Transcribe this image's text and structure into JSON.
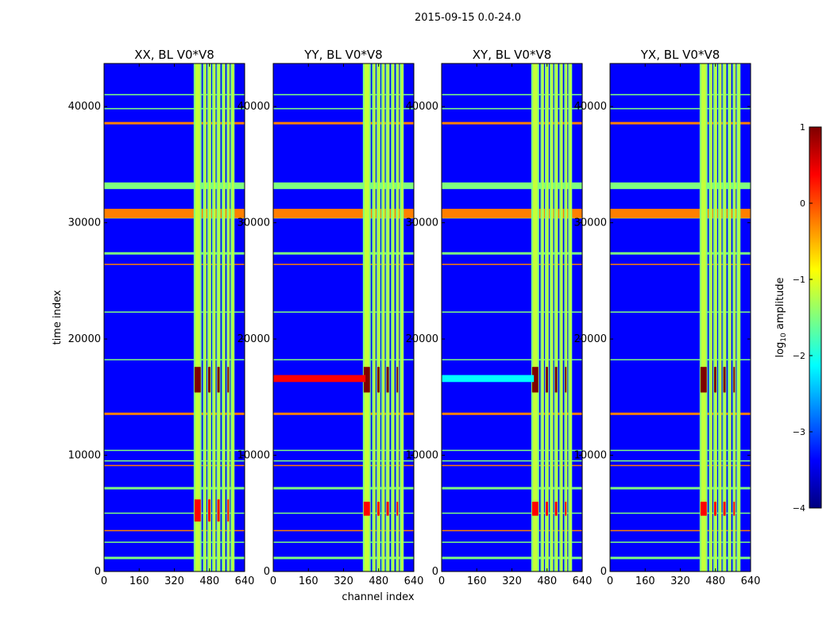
{
  "figure": {
    "suptitle": "2015-09-15 0.0-24.0",
    "colorscale": [
      "#00007f",
      "#0000ff",
      "#007fff",
      "#00ffff",
      "#7fff7f",
      "#ffff00",
      "#ff7f00",
      "#ff0000",
      "#7f0000"
    ]
  },
  "chart_data": [
    {
      "type": "heatmap",
      "title": "XX, BL V0*V8",
      "xlabel": "",
      "ylabel": "time index",
      "xlim": [
        0,
        640
      ],
      "ylim": [
        0,
        43700
      ],
      "xticks": [
        "0",
        "160",
        "320",
        "480",
        "640"
      ],
      "yticks": [
        "0",
        "10000",
        "20000",
        "30000",
        "40000"
      ],
      "band_channels": [
        [
          408,
          444
        ],
        [
          450,
          466
        ],
        [
          470,
          488
        ],
        [
          492,
          508
        ],
        [
          512,
          530
        ],
        [
          536,
          552
        ],
        [
          558,
          572
        ],
        [
          576,
          594
        ]
      ],
      "hot_time_ranges": [
        [
          15400,
          17600
        ],
        [
          4300,
          6200
        ]
      ],
      "broadband_flag": false,
      "bright_time_rows": [
        38600,
        39800,
        41000,
        33000,
        33400,
        31100,
        30800,
        30400,
        27400,
        26400,
        22300,
        18200,
        13600,
        10400,
        9500,
        9100,
        7200,
        5000,
        3500,
        2500,
        1200
      ]
    },
    {
      "type": "heatmap",
      "title": "YY, BL V0*V8",
      "xlabel": "channel index",
      "ylabel": "",
      "xlim": [
        0,
        640
      ],
      "ylim": [
        0,
        43700
      ],
      "xticks": [
        "0",
        "160",
        "320",
        "480",
        "640"
      ],
      "yticks": [
        "0",
        "10000",
        "20000",
        "30000",
        "40000"
      ],
      "band_channels": [
        [
          408,
          444
        ],
        [
          450,
          466
        ],
        [
          470,
          488
        ],
        [
          492,
          508
        ],
        [
          512,
          530
        ],
        [
          536,
          552
        ],
        [
          558,
          572
        ],
        [
          576,
          594
        ]
      ],
      "hot_time_ranges": [
        [
          15400,
          17600
        ],
        [
          4800,
          6000
        ]
      ],
      "broadband_flag": true,
      "bright_time_rows": [
        38600,
        39800,
        41000,
        33000,
        33400,
        31100,
        30800,
        30400,
        27400,
        26400,
        22300,
        18200,
        13600,
        10400,
        9500,
        9100,
        7200,
        5000,
        3500,
        2500,
        1200
      ]
    },
    {
      "type": "heatmap",
      "title": "XY, BL V0*V8",
      "xlabel": "",
      "ylabel": "",
      "xlim": [
        0,
        640
      ],
      "ylim": [
        0,
        43700
      ],
      "xticks": [
        "0",
        "160",
        "320",
        "480",
        "640"
      ],
      "yticks": [
        "0",
        "10000",
        "20000",
        "30000",
        "40000"
      ],
      "band_channels": [
        [
          408,
          444
        ],
        [
          450,
          466
        ],
        [
          470,
          488
        ],
        [
          492,
          508
        ],
        [
          512,
          530
        ],
        [
          536,
          552
        ],
        [
          558,
          572
        ],
        [
          576,
          594
        ]
      ],
      "hot_time_ranges": [
        [
          15400,
          17600
        ],
        [
          4800,
          6000
        ]
      ],
      "broadband_flag": true,
      "bright_time_rows": [
        38600,
        39800,
        41000,
        33000,
        33400,
        31100,
        30800,
        30400,
        27400,
        26400,
        22300,
        18200,
        13600,
        10400,
        9500,
        9100,
        7200,
        5000,
        3500,
        2500,
        1200
      ]
    },
    {
      "type": "heatmap",
      "title": "YX, BL V0*V8",
      "xlabel": "",
      "ylabel": "",
      "xlim": [
        0,
        640
      ],
      "ylim": [
        0,
        43700
      ],
      "xticks": [
        "0",
        "160",
        "320",
        "480",
        "640"
      ],
      "yticks": [
        "0",
        "10000",
        "20000",
        "30000",
        "40000"
      ],
      "band_channels": [
        [
          408,
          444
        ],
        [
          450,
          466
        ],
        [
          470,
          488
        ],
        [
          492,
          508
        ],
        [
          512,
          530
        ],
        [
          536,
          552
        ],
        [
          558,
          572
        ],
        [
          576,
          594
        ]
      ],
      "hot_time_ranges": [
        [
          15400,
          17600
        ],
        [
          4800,
          6000
        ]
      ],
      "broadband_flag": false,
      "bright_time_rows": [
        38600,
        39800,
        41000,
        33000,
        33400,
        31100,
        30800,
        30400,
        27400,
        26400,
        22300,
        18200,
        13600,
        10400,
        9500,
        9100,
        7200,
        5000,
        3500,
        2500,
        1200
      ]
    }
  ],
  "colorbar": {
    "label_prefix": "log",
    "label_sub": "10",
    "label_suffix": " amplitude",
    "range": [
      -4,
      1
    ],
    "ticks": [
      "1",
      "0",
      "−1",
      "−2",
      "−3",
      "−4"
    ]
  }
}
